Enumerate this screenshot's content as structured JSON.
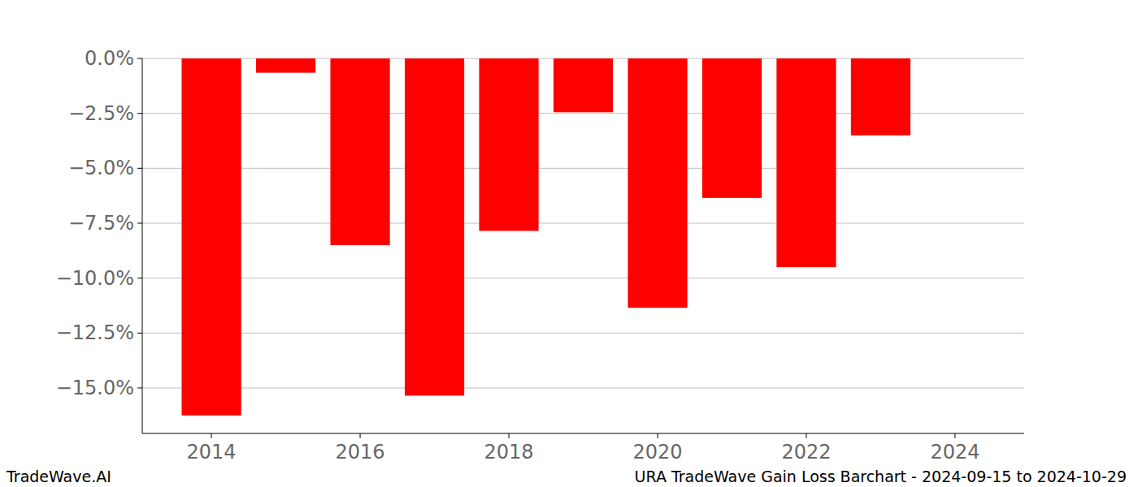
{
  "chart_data": {
    "type": "bar",
    "title": "URA TradeWave Gain Loss Barchart - 2024-09-15 to 2024-10-29",
    "annotations": [
      "TradeWave.AI"
    ],
    "x": [
      2014,
      2015,
      2016,
      2017,
      2018,
      2019,
      2020,
      2021,
      2022,
      2023
    ],
    "values": [
      -16.25,
      -0.65,
      -8.5,
      -15.35,
      -7.85,
      -2.45,
      -11.35,
      -6.35,
      -9.5,
      -3.5
    ],
    "color": "#ff0000",
    "xlim": [
      2013.07,
      2024.93
    ],
    "xticks": [
      2014,
      2016,
      2018,
      2020,
      2022,
      2024
    ],
    "ylim": [
      -17.07,
      0
    ],
    "yticks": [
      {
        "value": 0,
        "label": "0.0%"
      },
      {
        "value": -2.5,
        "label": "−2.5%"
      },
      {
        "value": -5,
        "label": "−5.0%"
      },
      {
        "value": -7.5,
        "label": "−7.5%"
      },
      {
        "value": -10,
        "label": "−10.0%"
      },
      {
        "value": -12.5,
        "label": "−12.5%"
      },
      {
        "value": -15,
        "label": "−15.0%"
      }
    ],
    "grid": true
  }
}
